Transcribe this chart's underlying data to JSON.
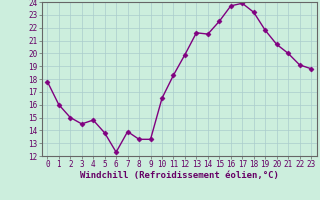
{
  "x": [
    0,
    1,
    2,
    3,
    4,
    5,
    6,
    7,
    8,
    9,
    10,
    11,
    12,
    13,
    14,
    15,
    16,
    17,
    18,
    19,
    20,
    21,
    22,
    23
  ],
  "y": [
    17.8,
    16.0,
    15.0,
    14.5,
    14.8,
    13.8,
    12.3,
    13.9,
    13.3,
    13.3,
    16.5,
    18.3,
    19.9,
    21.6,
    21.5,
    22.5,
    23.7,
    23.9,
    23.2,
    21.8,
    20.7,
    20.0,
    19.1,
    18.8
  ],
  "line_color": "#800080",
  "marker": "D",
  "marker_size": 2.5,
  "bg_color": "#cceedd",
  "grid_color": "#aacccc",
  "xlabel": "Windchill (Refroidissement éolien,°C)",
  "ylim": [
    12,
    24
  ],
  "xlim_min": -0.5,
  "xlim_max": 23.5,
  "yticks": [
    12,
    13,
    14,
    15,
    16,
    17,
    18,
    19,
    20,
    21,
    22,
    23,
    24
  ],
  "xticks": [
    0,
    1,
    2,
    3,
    4,
    5,
    6,
    7,
    8,
    9,
    10,
    11,
    12,
    13,
    14,
    15,
    16,
    17,
    18,
    19,
    20,
    21,
    22,
    23
  ],
  "tick_fontsize": 5.5,
  "xlabel_fontsize": 6.5,
  "line_width": 1.0,
  "spine_color": "#666666"
}
